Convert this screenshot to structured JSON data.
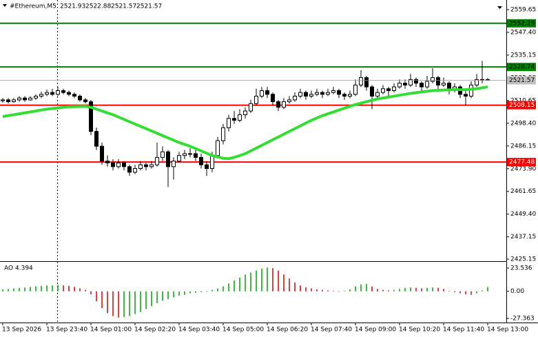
{
  "chart_data": {
    "type": "candlestick",
    "symbol": "#Ethereum,M5",
    "candle_color": "#000000",
    "xlim": [
      -0.5,
      88.5
    ],
    "ylim": [
      2424.4,
      2564.85
    ],
    "yticks": [
      2559.65,
      {
        "value": 2547.4,
        "label": "2547.40"
      },
      2535.15,
      {
        "value": 2522.9,
        "label": "2522.90"
      },
      2510.65,
      {
        "value": 2498.4,
        "label": "2498.40"
      },
      2486.15,
      {
        "value": 2473.9,
        "label": "2473.90"
      },
      2461.65,
      {
        "value": 2449.4,
        "label": "2449.40"
      },
      2437.15,
      2425.15
    ],
    "xticks": [
      {
        "value": 0,
        "label": "13 Sep 2026"
      },
      {
        "value": 8,
        "label": "13 Sep 23:40"
      },
      {
        "value": 16,
        "label": "14 Sep 01:00"
      },
      {
        "value": 24,
        "label": "14 Sep 02:20"
      },
      {
        "value": 32,
        "label": "14 Sep 03:40"
      },
      {
        "value": 40,
        "label": "14 Sep 05:00"
      },
      {
        "value": 48,
        "label": "14 Sep 06:20"
      },
      {
        "value": 56,
        "label": "14 Sep 07:40"
      },
      {
        "value": 64,
        "label": "14 Sep 09:00"
      },
      {
        "value": 72,
        "label": "14 Sep 10:20"
      },
      {
        "value": 80,
        "label": "14 Sep 11:40"
      },
      {
        "value": 88,
        "label": "14 Sep 13:00"
      }
    ],
    "candles": [
      [
        2510.5,
        2512,
        2509.5,
        2511
      ],
      [
        2511,
        2512,
        2509,
        2510
      ],
      [
        2510,
        2512,
        2509.5,
        2511
      ],
      [
        2511,
        2513,
        2510,
        2512
      ],
      [
        2512,
        2513,
        2510,
        2511
      ],
      [
        2511,
        2513,
        2510.5,
        2512
      ],
      [
        2512,
        2514,
        2511,
        2513
      ],
      [
        2513,
        2515.5,
        2512,
        2514
      ],
      [
        2514,
        2516.5,
        2513,
        2515
      ],
      [
        2515,
        2517,
        2513,
        2514
      ],
      [
        2514,
        2518,
        2513,
        2516
      ],
      [
        2516,
        2517,
        2514,
        2515
      ],
      [
        2515,
        2516,
        2513,
        2514
      ],
      [
        2514,
        2515,
        2512,
        2513
      ],
      [
        2513,
        2514,
        2510,
        2511
      ],
      [
        2511,
        2512,
        2509,
        2510
      ],
      [
        2510,
        2511,
        2492,
        2494
      ],
      [
        2494,
        2496,
        2484,
        2486
      ],
      [
        2486,
        2488,
        2476,
        2478
      ],
      [
        2478,
        2481,
        2475,
        2477
      ],
      [
        2477,
        2479,
        2473,
        2475
      ],
      [
        2475,
        2479,
        2474,
        2477
      ],
      [
        2477,
        2478,
        2473,
        2475
      ],
      [
        2475,
        2476,
        2470,
        2472
      ],
      [
        2472,
        2476,
        2471,
        2474
      ],
      [
        2474,
        2478,
        2473,
        2476
      ],
      [
        2476,
        2477,
        2473,
        2475
      ],
      [
        2475,
        2478,
        2474,
        2476
      ],
      [
        2476,
        2488,
        2475,
        2480
      ],
      [
        2480,
        2486,
        2478,
        2483
      ],
      [
        2483,
        2484,
        2464,
        2475
      ],
      [
        2475,
        2480,
        2468,
        2478
      ],
      [
        2478,
        2483,
        2477,
        2481
      ],
      [
        2481,
        2484,
        2479,
        2482
      ],
      [
        2482,
        2485,
        2480,
        2482
      ],
      [
        2482,
        2484,
        2478,
        2480
      ],
      [
        2480,
        2482,
        2474,
        2476
      ],
      [
        2476,
        2478,
        2470,
        2474
      ],
      [
        2474,
        2483,
        2472,
        2481
      ],
      [
        2481,
        2491,
        2480,
        2489
      ],
      [
        2489,
        2498,
        2487,
        2496
      ],
      [
        2496,
        2503,
        2494,
        2501
      ],
      [
        2501,
        2505,
        2498,
        2500
      ],
      [
        2500,
        2506,
        2499,
        2503
      ],
      [
        2503,
        2507,
        2501,
        2505
      ],
      [
        2505,
        2511,
        2504,
        2509
      ],
      [
        2509,
        2517,
        2508,
        2513
      ],
      [
        2513,
        2518,
        2512,
        2516
      ],
      [
        2516,
        2518,
        2512,
        2514
      ],
      [
        2514,
        2515,
        2508,
        2510
      ],
      [
        2510,
        2511,
        2505,
        2507
      ],
      [
        2507,
        2512,
        2506,
        2510
      ],
      [
        2510,
        2513,
        2509,
        2511
      ],
      [
        2511,
        2515,
        2510,
        2513
      ],
      [
        2513,
        2517,
        2512,
        2515
      ],
      [
        2515,
        2516,
        2511,
        2513
      ],
      [
        2513,
        2516,
        2512,
        2514
      ],
      [
        2514,
        2517,
        2513,
        2515
      ],
      [
        2515,
        2516,
        2512,
        2514
      ],
      [
        2514,
        2517,
        2513,
        2515
      ],
      [
        2515,
        2518,
        2514,
        2516
      ],
      [
        2516,
        2517,
        2512,
        2514
      ],
      [
        2514,
        2515,
        2511,
        2513
      ],
      [
        2513,
        2516,
        2512,
        2514
      ],
      [
        2514,
        2522,
        2513,
        2519
      ],
      [
        2519,
        2527,
        2518,
        2523
      ],
      [
        2523,
        2524,
        2516,
        2518
      ],
      [
        2518,
        2519,
        2506,
        2513
      ],
      [
        2513,
        2517,
        2511,
        2515
      ],
      [
        2515,
        2519,
        2514,
        2517
      ],
      [
        2517,
        2518,
        2513,
        2516
      ],
      [
        2516,
        2520,
        2515,
        2518
      ],
      [
        2518,
        2522,
        2517,
        2520
      ],
      [
        2520,
        2522,
        2517,
        2519
      ],
      [
        2519,
        2525,
        2518,
        2522
      ],
      [
        2522,
        2523,
        2518,
        2520
      ],
      [
        2520,
        2521,
        2515,
        2518
      ],
      [
        2518,
        2524,
        2517,
        2521
      ],
      [
        2521,
        2528,
        2520,
        2523
      ],
      [
        2523,
        2524,
        2516,
        2519
      ],
      [
        2519,
        2523,
        2518,
        2520
      ],
      [
        2520,
        2521,
        2514,
        2517
      ],
      [
        2517,
        2520,
        2515,
        2518
      ],
      [
        2518,
        2519,
        2512,
        2514
      ],
      [
        2514,
        2516,
        2508,
        2513
      ],
      [
        2513,
        2521,
        2512,
        2519
      ],
      [
        2519,
        2525,
        2518,
        2522
      ],
      [
        2522,
        2532,
        2520,
        2521.93
      ],
      [
        2521.93,
        2522.88,
        2521.57,
        2521.57
      ]
    ],
    "ma": {
      "color": "#33dd33",
      "x": [
        0,
        4,
        8,
        12,
        15,
        16,
        18,
        20,
        22,
        24,
        26,
        28,
        30,
        32,
        34,
        36,
        38,
        40,
        41,
        42,
        44,
        46,
        48,
        50,
        52,
        54,
        56,
        58,
        60,
        62,
        64,
        66,
        68,
        70,
        72,
        74,
        76,
        78,
        80,
        82,
        84,
        86,
        88
      ],
      "values": [
        2502,
        2504,
        2506,
        2507.3,
        2507.5,
        2507,
        2505,
        2503,
        2500.5,
        2498,
        2495.5,
        2493,
        2490.5,
        2488,
        2486,
        2483.5,
        2481,
        2479.5,
        2479.3,
        2480,
        2482,
        2485,
        2488,
        2491,
        2494,
        2497,
        2500,
        2502.5,
        2504.5,
        2506.5,
        2508.5,
        2510,
        2511.5,
        2512.5,
        2513.5,
        2514.5,
        2515.3,
        2516,
        2516.3,
        2516.5,
        2516.5,
        2517,
        2518
      ]
    },
    "levels": [
      {
        "value": 2552.29,
        "color": "#008000"
      },
      {
        "value": 2528.74,
        "color": "#008000"
      },
      {
        "value": 2508.15,
        "color": "#ff0000"
      },
      {
        "value": 2477.48,
        "color": "#ff0000"
      }
    ],
    "ao": {
      "name": "AO",
      "up_color": "#00a000",
      "down_color": "#d00000",
      "ylim": [
        -31.5,
        29.05
      ],
      "yticks": [
        23.536,
        {
          "value": 0,
          "label": "0.00"
        },
        -27.363
      ],
      "values": [
        2,
        2.5,
        3,
        3.5,
        4,
        4.5,
        5,
        5.5,
        6,
        6,
        6.5,
        6,
        5.5,
        4.5,
        3,
        1.5,
        -3,
        -10,
        -17,
        -22,
        -25,
        -26.5,
        -26,
        -25,
        -23,
        -21,
        -18,
        -15,
        -12,
        -9.5,
        -8,
        -6,
        -4.5,
        -3.5,
        -2,
        -1.5,
        -1,
        0.5,
        1.5,
        3,
        5,
        8,
        11,
        14,
        17,
        19,
        21,
        23,
        24,
        23.5,
        21,
        17,
        13,
        9,
        6,
        4,
        3,
        2,
        1.5,
        1,
        0.5,
        -0.5,
        0.5,
        2,
        5,
        7,
        7.5,
        5,
        2.5,
        1.5,
        1,
        1.5,
        2.5,
        3.5,
        4,
        3.5,
        3,
        3.5,
        4,
        3.5,
        2.5,
        0.5,
        -1,
        -2,
        -3,
        -3.5,
        -2,
        1,
        4.394
      ]
    }
  }
}
